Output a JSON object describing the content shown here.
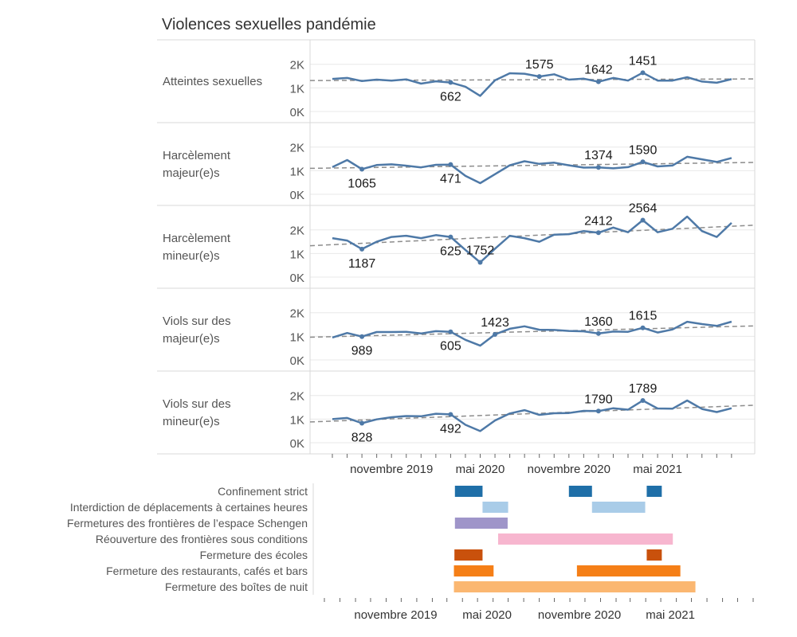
{
  "title": "Violences sexuelles pandémie",
  "chart_data": [
    {
      "type": "line",
      "title": "Violences sexuelles pandémie",
      "x": [
        "2019-07",
        "2019-08",
        "2019-09",
        "2019-10",
        "2019-11",
        "2019-12",
        "2020-01",
        "2020-02",
        "2020-03",
        "2020-04",
        "2020-05",
        "2020-06",
        "2020-07",
        "2020-08",
        "2020-09",
        "2020-10",
        "2020-11",
        "2020-12",
        "2021-01",
        "2021-02",
        "2021-03",
        "2021-04",
        "2021-05",
        "2021-06",
        "2021-07",
        "2021-08",
        "2021-09",
        "2021-10"
      ],
      "x_tick_labels": [
        "novembre 2019",
        "mai 2020",
        "novembre 2020",
        "mai 2021"
      ],
      "y_tick_labels": [
        "0K",
        "1K",
        "2K"
      ],
      "ylim": [
        0,
        2700
      ],
      "trend_line": "dashed",
      "series": [
        {
          "name": "Atteintes sexuelles",
          "values": [
            1380,
            1420,
            1290,
            1350,
            1310,
            1360,
            1180,
            1280,
            1230,
            1050,
            662,
            1320,
            1620,
            1600,
            1480,
            1575,
            1350,
            1390,
            1260,
            1420,
            1310,
            1642,
            1310,
            1310,
            1451,
            1270,
            1220,
            1370
          ],
          "labels": [
            {
              "month": "2020-03",
              "value": "662",
              "pos": "below"
            },
            {
              "month": "2020-09",
              "value": "1575",
              "pos": "above"
            },
            {
              "month": "2021-01",
              "value": "1642",
              "pos": "above"
            },
            {
              "month": "2021-04",
              "value": "1451",
              "pos": "above"
            }
          ],
          "markers": [
            "2020-03",
            "2020-09",
            "2021-01",
            "2021-04"
          ],
          "trend": [
            1310,
            1380
          ]
        },
        {
          "name": "Harcèlement majeur(e)s",
          "values": [
            1150,
            1450,
            1065,
            1240,
            1270,
            1210,
            1140,
            1250,
            1260,
            780,
            471,
            850,
            1230,
            1400,
            1290,
            1340,
            1230,
            1130,
            1140,
            1100,
            1150,
            1374,
            1180,
            1220,
            1590,
            1480,
            1370,
            1540
          ],
          "labels": [
            {
              "month": "2019-09",
              "value": "1065",
              "pos": "below"
            },
            {
              "month": "2020-03",
              "value": "471",
              "pos": "below"
            },
            {
              "month": "2021-01",
              "value": "1374",
              "pos": "above"
            },
            {
              "month": "2021-04",
              "value": "1590",
              "pos": "above"
            }
          ],
          "markers": [
            "2019-09",
            "2020-03",
            "2021-01",
            "2021-04"
          ],
          "trend": [
            1100,
            1350
          ]
        },
        {
          "name": "Harcèlement mineur(e)s",
          "values": [
            1650,
            1550,
            1187,
            1500,
            1700,
            1750,
            1650,
            1780,
            1700,
            1150,
            625,
            1200,
            1752,
            1650,
            1500,
            1800,
            1820,
            1950,
            1880,
            2100,
            1900,
            2412,
            1900,
            2050,
            2564,
            1950,
            1700,
            2300
          ],
          "labels": [
            {
              "month": "2019-09",
              "value": "1187",
              "pos": "below"
            },
            {
              "month": "2020-03",
              "value": "625",
              "pos": "below"
            },
            {
              "month": "2020-05",
              "value": "1752",
              "pos": "above"
            },
            {
              "month": "2021-01",
              "value": "2412",
              "pos": "above"
            },
            {
              "month": "2021-04",
              "value": "2564",
              "pos": "above"
            }
          ],
          "markers": [
            "2019-09",
            "2020-03",
            "2020-05",
            "2021-01",
            "2021-04"
          ],
          "trend": [
            1330,
            2200
          ]
        },
        {
          "name": "Viols sur des majeur(e)s",
          "values": [
            950,
            1140,
            989,
            1180,
            1180,
            1190,
            1120,
            1220,
            1190,
            850,
            605,
            1080,
            1320,
            1423,
            1280,
            1270,
            1230,
            1210,
            1120,
            1200,
            1190,
            1360,
            1160,
            1290,
            1615,
            1520,
            1440,
            1620
          ],
          "labels": [
            {
              "month": "2019-09",
              "value": "989",
              "pos": "below"
            },
            {
              "month": "2020-03",
              "value": "605",
              "pos": "below"
            },
            {
              "month": "2020-06",
              "value": "1423",
              "pos": "above"
            },
            {
              "month": "2021-01",
              "value": "1360",
              "pos": "above"
            },
            {
              "month": "2021-04",
              "value": "1615",
              "pos": "above"
            }
          ],
          "markers": [
            "2019-09",
            "2020-03",
            "2020-06",
            "2021-01",
            "2021-04"
          ],
          "trend": [
            960,
            1440
          ]
        },
        {
          "name": "Viols sur des mineur(e)s",
          "values": [
            1000,
            1050,
            828,
            990,
            1080,
            1130,
            1120,
            1230,
            1200,
            760,
            492,
            940,
            1240,
            1380,
            1180,
            1250,
            1260,
            1350,
            1340,
            1460,
            1400,
            1790,
            1450,
            1440,
            1789,
            1430,
            1300,
            1460
          ],
          "labels": [
            {
              "month": "2019-09",
              "value": "828",
              "pos": "below"
            },
            {
              "month": "2020-03",
              "value": "492",
              "pos": "below"
            },
            {
              "month": "2021-01",
              "value": "1790",
              "pos": "above"
            },
            {
              "month": "2021-04",
              "value": "1789",
              "pos": "above"
            }
          ],
          "markers": [
            "2019-09",
            "2020-03",
            "2021-01",
            "2021-04"
          ],
          "trend": [
            880,
            1590
          ]
        }
      ]
    },
    {
      "type": "gantt",
      "x_tick_labels": [
        "novembre 2019",
        "mai 2020",
        "novembre 2020",
        "mai 2021"
      ],
      "rows": [
        {
          "label": "Confinement strict",
          "color": "#1f6fa8",
          "bars": [
            [
              "2020-03-17",
              "2020-05-11"
            ],
            [
              "2020-10-30",
              "2020-12-15"
            ],
            [
              "2021-04-03",
              "2021-05-03"
            ]
          ]
        },
        {
          "label": "Interdiction de déplacements à certaines heures",
          "color": "#a9cce8",
          "bars": [
            [
              "2020-05-11",
              "2020-07-01"
            ],
            [
              "2020-12-15",
              "2021-03-31"
            ]
          ]
        },
        {
          "label": "Fermetures des frontières de l’espace Schengen",
          "color": "#9f95c9",
          "bars": [
            [
              "2020-03-17",
              "2020-06-30"
            ]
          ]
        },
        {
          "label": "Réouverture des frontières sous conditions",
          "color": "#f7b6cf",
          "bars": [
            [
              "2020-06-11",
              "2021-05-25"
            ]
          ]
        },
        {
          "label": "Fermeture des écoles",
          "color": "#c9510c",
          "bars": [
            [
              "2020-03-16",
              "2020-05-11"
            ],
            [
              "2021-04-03",
              "2021-05-03"
            ]
          ]
        },
        {
          "label": "Fermeture des restaurants, cafés et bars",
          "color": "#f57f17",
          "bars": [
            [
              "2020-03-15",
              "2020-06-02"
            ],
            [
              "2020-11-15",
              "2021-06-09"
            ]
          ]
        },
        {
          "label": "Fermeture des boîtes de nuit",
          "color": "#fbb771",
          "bars": [
            [
              "2020-03-15",
              "2021-07-09"
            ]
          ]
        }
      ]
    }
  ],
  "colors": {
    "line": "#4e79a7",
    "trend": "#8c8c8c",
    "grid": "#e8e8e8",
    "border": "#d9d9d9"
  }
}
